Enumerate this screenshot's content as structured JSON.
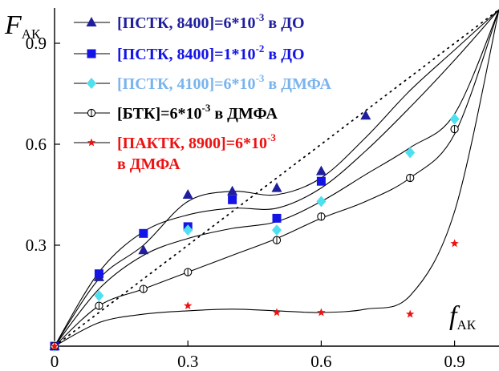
{
  "chart_data": {
    "type": "scatter",
    "title": "",
    "ylabel": "F",
    "ylabel_sub": "АК",
    "xlabel": "f",
    "xlabel_sub": "АК",
    "xlim": [
      0,
      1.0
    ],
    "ylim": [
      0,
      1.0
    ],
    "x_ticks": [
      {
        "value": 0,
        "label": "0"
      },
      {
        "value": 0.3,
        "label": "0.3"
      },
      {
        "value": 0.6,
        "label": "0.6"
      },
      {
        "value": 0.9,
        "label": "0.9"
      }
    ],
    "y_ticks": [
      {
        "value": 0.3,
        "label": "0.3"
      },
      {
        "value": 0.6,
        "label": "0.6"
      },
      {
        "value": 0.9,
        "label": "0.9"
      }
    ],
    "diagonal": {
      "style": "dotted",
      "from": [
        0,
        0
      ],
      "to": [
        1,
        1
      ]
    },
    "legend_placement": "top-left",
    "series": [
      {
        "legend_pre": "[ПСТК, 8400]=6*10",
        "legend_sup": "-3",
        "legend_post": " в ДО",
        "legend_line2": "",
        "color": "#1f1f9e",
        "marker": "triangle",
        "x": [
          0,
          0.1,
          0.2,
          0.3,
          0.4,
          0.5,
          0.6,
          0.7
        ],
        "y": [
          0,
          0.205,
          0.285,
          0.45,
          0.46,
          0.47,
          0.52,
          0.685
        ],
        "curve_x": [
          0,
          0.1,
          0.2,
          0.3,
          0.4,
          0.5,
          0.6,
          0.7,
          0.8,
          0.9,
          1.0
        ],
        "curve_y": [
          0,
          0.2,
          0.3,
          0.43,
          0.46,
          0.45,
          0.5,
          0.62,
          0.76,
          0.88,
          1.0
        ]
      },
      {
        "legend_pre": "[ПСТК, 8400]=1*10",
        "legend_sup": "-2",
        "legend_post": " в ДО",
        "legend_line2": "",
        "color": "#1414e6",
        "marker": "square",
        "x": [
          0,
          0.1,
          0.2,
          0.3,
          0.4,
          0.5,
          0.6
        ],
        "y": [
          0,
          0.215,
          0.335,
          0.355,
          0.435,
          0.38,
          0.49
        ],
        "curve_x": [
          0,
          0.1,
          0.2,
          0.3,
          0.4,
          0.5,
          0.6,
          0.7,
          0.8,
          0.9,
          1.0
        ],
        "curve_y": [
          0,
          0.22,
          0.34,
          0.39,
          0.41,
          0.41,
          0.47,
          0.58,
          0.71,
          0.85,
          1.0
        ]
      },
      {
        "legend_pre": "[ПСТК, 4100]=6*10",
        "legend_sup": "-3",
        "legend_post": " в ДМФА",
        "legend_line2": "",
        "color": "#7ab4ee",
        "marker_color": "#4fe0f0",
        "marker": "diamond",
        "x": [
          0,
          0.1,
          0.3,
          0.5,
          0.6,
          0.8,
          0.9
        ],
        "y": [
          0,
          0.15,
          0.345,
          0.345,
          0.43,
          0.575,
          0.675
        ],
        "curve_x": [
          0,
          0.1,
          0.2,
          0.3,
          0.4,
          0.5,
          0.6,
          0.7,
          0.8,
          0.9,
          1.0
        ],
        "curve_y": [
          0,
          0.17,
          0.27,
          0.32,
          0.35,
          0.37,
          0.43,
          0.51,
          0.59,
          0.69,
          1.0
        ]
      },
      {
        "legend_pre": "[БТК]=6*10",
        "legend_sup": "-3",
        "legend_post": " в ДМФА",
        "legend_line2": "",
        "color": "#000000",
        "marker": "circle",
        "x": [
          0,
          0.1,
          0.2,
          0.3,
          0.5,
          0.6,
          0.8,
          0.9
        ],
        "y": [
          0,
          0.12,
          0.17,
          0.22,
          0.315,
          0.385,
          0.5,
          0.645
        ],
        "curve_x": [
          0,
          0.1,
          0.2,
          0.3,
          0.4,
          0.5,
          0.6,
          0.7,
          0.8,
          0.9,
          1.0
        ],
        "curve_y": [
          0,
          0.12,
          0.17,
          0.22,
          0.27,
          0.32,
          0.38,
          0.43,
          0.5,
          0.63,
          1.0
        ]
      },
      {
        "legend_pre": "[ПАКТК, 8900]=6*10",
        "legend_sup": "-3",
        "legend_post": "",
        "legend_line2": "в ДМФА",
        "color": "#ee1111",
        "marker": "star",
        "x": [
          0,
          0.3,
          0.5,
          0.6,
          0.8,
          0.9
        ],
        "y": [
          0,
          0.12,
          0.1,
          0.1,
          0.095,
          0.305
        ],
        "curve_x": [
          0,
          0.1,
          0.2,
          0.3,
          0.4,
          0.5,
          0.6,
          0.7,
          0.8,
          0.9,
          1.0
        ],
        "curve_y": [
          0,
          0.07,
          0.095,
          0.105,
          0.11,
          0.105,
          0.1,
          0.11,
          0.15,
          0.4,
          1.0
        ]
      }
    ]
  }
}
